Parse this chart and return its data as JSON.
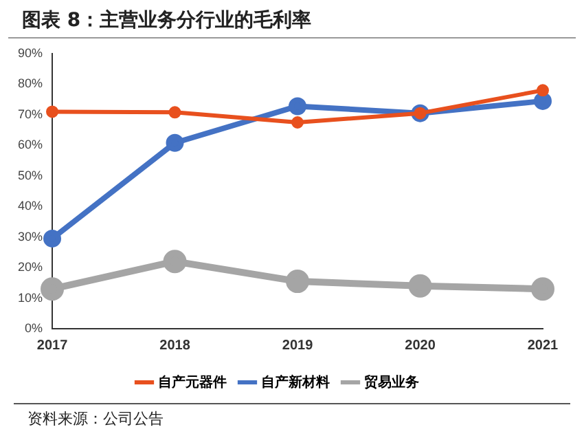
{
  "chart_data": {
    "type": "line",
    "title": "图表 8：主营业务分行业的毛利率",
    "categories": [
      "2017",
      "2018",
      "2019",
      "2020",
      "2021"
    ],
    "series": [
      {
        "name": "自产元器件",
        "color": "#e8501e",
        "values": [
          71,
          70.8,
          67.5,
          70.5,
          78
        ]
      },
      {
        "name": "自产新材料",
        "color": "#4472c4",
        "values": [
          29.5,
          60.8,
          72.8,
          70.5,
          74.5
        ]
      },
      {
        "name": "贸易业务",
        "color": "#a5a5a5",
        "values": [
          13,
          22,
          15.5,
          14,
          13
        ]
      }
    ],
    "ylim": [
      0,
      90
    ],
    "yticks": [
      {
        "value": 0,
        "label": "0%"
      },
      {
        "value": 10,
        "label": "10%"
      },
      {
        "value": 20,
        "label": "20%"
      },
      {
        "value": 30,
        "label": "30%"
      },
      {
        "value": 40,
        "label": "40%"
      },
      {
        "value": 50,
        "label": "50%"
      },
      {
        "value": 60,
        "label": "60%"
      },
      {
        "value": 70,
        "label": "70%"
      },
      {
        "value": 80,
        "label": "80%"
      },
      {
        "value": 90,
        "label": "90%"
      }
    ],
    "legend": "bottom",
    "marker": "circle",
    "annotations": [
      "资料来源：公司公告"
    ]
  }
}
